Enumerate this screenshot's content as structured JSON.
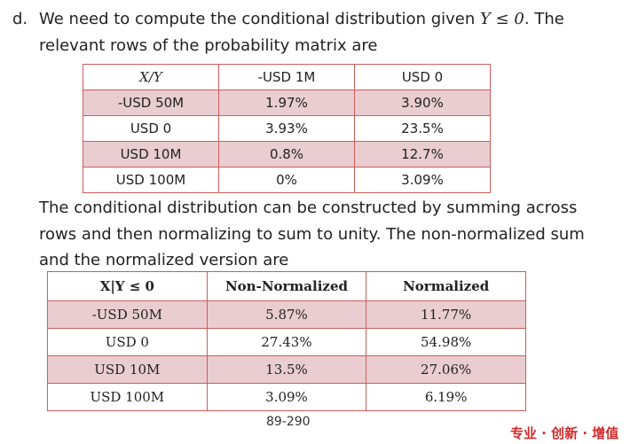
{
  "paragraph1": {
    "label": "d.",
    "line1": [
      "We need to compute the conditional distribution given ",
      "Y ≤ 0",
      ". The"
    ],
    "line2": "relevant rows of the probability matrix are"
  },
  "table1": {
    "header": [
      "X/Y",
      "-USD 1M",
      "USD 0"
    ],
    "rows": [
      [
        "-USD 50M",
        "1.97%",
        "3.90%"
      ],
      [
        "USD 0",
        "3.93%",
        "23.5%"
      ],
      [
        "USD 10M",
        "0.8%",
        "12.7%"
      ],
      [
        "USD 100M",
        "0%",
        "3.09%"
      ]
    ]
  },
  "paragraph2": [
    "The conditional distribution can be constructed by summing across",
    "rows and then normalizing to sum to unity. The non-normalized sum",
    "and the normalized version are"
  ],
  "table2": {
    "header": [
      "X|Y ≤ 0",
      "Non-Normalized",
      "Normalized"
    ],
    "rows": [
      [
        "-USD 50M",
        "5.87%",
        "11.77%"
      ],
      [
        "USD 0",
        "27.43%",
        "54.98%"
      ],
      [
        "USD 10M",
        "13.5%",
        "27.06%"
      ],
      [
        "USD 100M",
        "3.09%",
        "6.19%"
      ]
    ]
  },
  "footer": {
    "page": "89-290",
    "watermark": "专业 · 创新 · 增值"
  }
}
